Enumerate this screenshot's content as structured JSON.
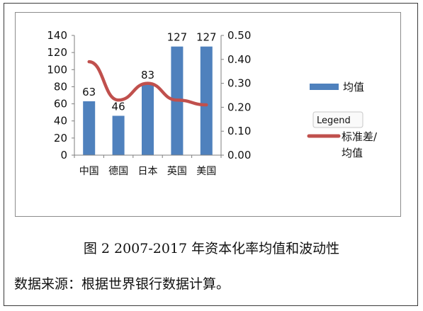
{
  "chart_data": {
    "type": "bar",
    "categories": [
      "中国",
      "德国",
      "日本",
      "英国",
      "美国"
    ],
    "series": [
      {
        "name": "均值",
        "type": "bar",
        "axis": "left",
        "values": [
          63,
          46,
          83,
          127,
          127
        ],
        "color": "#4f81bd"
      },
      {
        "name": "标准差/均值",
        "type": "line",
        "axis": "right",
        "values": [
          0.39,
          0.23,
          0.3,
          0.23,
          0.21
        ],
        "color": "#c0504d"
      }
    ],
    "data_labels": [
      "63",
      "46",
      "83",
      "127",
      "127"
    ],
    "y_left": {
      "range": [
        0,
        140
      ],
      "ticks": [
        "0",
        "20",
        "40",
        "60",
        "80",
        "100",
        "120",
        "140"
      ]
    },
    "y_right": {
      "range": [
        0,
        0.5
      ],
      "ticks": [
        "0.00",
        "0.10",
        "0.20",
        "0.30",
        "0.40",
        "0.50"
      ]
    },
    "legend": {
      "tooltip": "Legend",
      "bar_label": "均值",
      "line_label_1": "标准差/",
      "line_label_2": "均值",
      "placement": "right"
    },
    "grid": false
  },
  "caption": "图 2 2007-2017 年资本化率均值和波动性",
  "source": "数据来源：根据世界银行数据计算。"
}
